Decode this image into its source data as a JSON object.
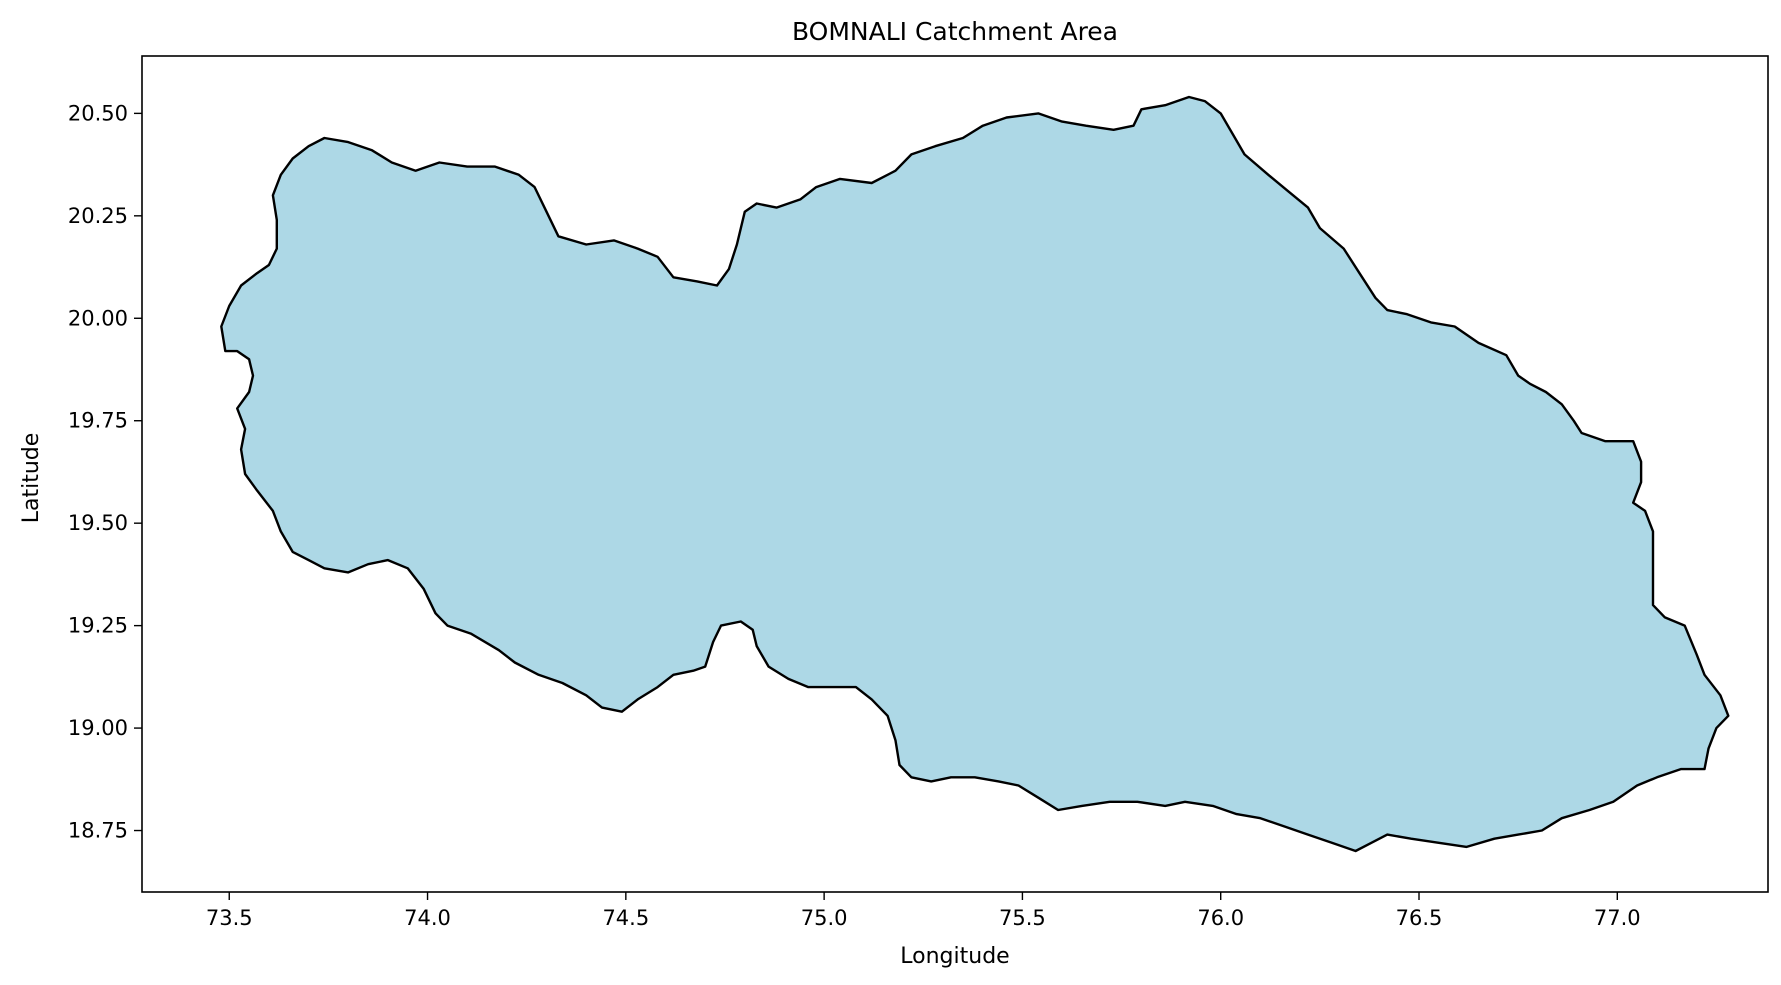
{
  "chart_data": {
    "type": "map",
    "title": "BOMNALI Catchment Area",
    "xlabel": "Longitude",
    "ylabel": "Latitude",
    "xlim": [
      73.28,
      77.38
    ],
    "ylim": [
      18.6,
      20.64
    ],
    "xticks": [
      73.5,
      74.0,
      74.5,
      75.0,
      75.5,
      76.0,
      76.5,
      77.0
    ],
    "xtick_labels": [
      "73.5",
      "74.0",
      "74.5",
      "75.0",
      "75.5",
      "76.0",
      "76.5",
      "77.0"
    ],
    "yticks": [
      18.75,
      19.0,
      19.25,
      19.5,
      19.75,
      20.0,
      20.25,
      20.5
    ],
    "ytick_labels": [
      "18.75",
      "19.00",
      "19.25",
      "19.50",
      "19.75",
      "20.00",
      "20.25",
      "20.50"
    ],
    "grid": false,
    "fill_color": "#add8e6",
    "edge_color": "#000000",
    "boundary": [
      [
        73.49,
        19.92
      ],
      [
        73.48,
        19.98
      ],
      [
        73.5,
        20.03
      ],
      [
        73.53,
        20.08
      ],
      [
        73.57,
        20.11
      ],
      [
        73.6,
        20.13
      ],
      [
        73.62,
        20.17
      ],
      [
        73.62,
        20.24
      ],
      [
        73.61,
        20.3
      ],
      [
        73.63,
        20.35
      ],
      [
        73.66,
        20.39
      ],
      [
        73.7,
        20.42
      ],
      [
        73.74,
        20.44
      ],
      [
        73.8,
        20.43
      ],
      [
        73.86,
        20.41
      ],
      [
        73.91,
        20.38
      ],
      [
        73.97,
        20.36
      ],
      [
        74.03,
        20.38
      ],
      [
        74.1,
        20.37
      ],
      [
        74.17,
        20.37
      ],
      [
        74.23,
        20.35
      ],
      [
        74.27,
        20.32
      ],
      [
        74.3,
        20.26
      ],
      [
        74.33,
        20.2
      ],
      [
        74.4,
        20.18
      ],
      [
        74.47,
        20.19
      ],
      [
        74.53,
        20.17
      ],
      [
        74.58,
        20.15
      ],
      [
        74.62,
        20.1
      ],
      [
        74.68,
        20.09
      ],
      [
        74.73,
        20.08
      ],
      [
        74.76,
        20.12
      ],
      [
        74.78,
        20.18
      ],
      [
        74.8,
        20.26
      ],
      [
        74.83,
        20.28
      ],
      [
        74.88,
        20.27
      ],
      [
        74.94,
        20.29
      ],
      [
        74.98,
        20.32
      ],
      [
        75.04,
        20.34
      ],
      [
        75.12,
        20.33
      ],
      [
        75.18,
        20.36
      ],
      [
        75.22,
        20.4
      ],
      [
        75.28,
        20.42
      ],
      [
        75.35,
        20.44
      ],
      [
        75.4,
        20.47
      ],
      [
        75.46,
        20.49
      ],
      [
        75.54,
        20.5
      ],
      [
        75.6,
        20.48
      ],
      [
        75.66,
        20.47
      ],
      [
        75.73,
        20.46
      ],
      [
        75.78,
        20.47
      ],
      [
        75.8,
        20.51
      ],
      [
        75.86,
        20.52
      ],
      [
        75.92,
        20.54
      ],
      [
        75.96,
        20.53
      ],
      [
        76.0,
        20.5
      ],
      [
        76.03,
        20.45
      ],
      [
        76.06,
        20.4
      ],
      [
        76.12,
        20.35
      ],
      [
        76.17,
        20.31
      ],
      [
        76.22,
        20.27
      ],
      [
        76.25,
        20.22
      ],
      [
        76.31,
        20.17
      ],
      [
        76.35,
        20.11
      ],
      [
        76.39,
        20.05
      ],
      [
        76.42,
        20.02
      ],
      [
        76.47,
        20.01
      ],
      [
        76.53,
        19.99
      ],
      [
        76.59,
        19.98
      ],
      [
        76.65,
        19.94
      ],
      [
        76.72,
        19.91
      ],
      [
        76.75,
        19.86
      ],
      [
        76.78,
        19.84
      ],
      [
        76.82,
        19.82
      ],
      [
        76.86,
        19.79
      ],
      [
        76.89,
        19.75
      ],
      [
        76.91,
        19.72
      ],
      [
        76.97,
        19.7
      ],
      [
        77.04,
        19.7
      ],
      [
        77.06,
        19.65
      ],
      [
        77.06,
        19.6
      ],
      [
        77.04,
        19.55
      ],
      [
        77.07,
        19.53
      ],
      [
        77.09,
        19.48
      ],
      [
        77.09,
        19.4
      ],
      [
        77.09,
        19.3
      ],
      [
        77.12,
        19.27
      ],
      [
        77.17,
        19.25
      ],
      [
        77.2,
        19.18
      ],
      [
        77.22,
        19.13
      ],
      [
        77.26,
        19.08
      ],
      [
        77.28,
        19.03
      ],
      [
        77.25,
        19.0
      ],
      [
        77.23,
        18.95
      ],
      [
        77.22,
        18.9
      ],
      [
        77.16,
        18.9
      ],
      [
        77.1,
        18.88
      ],
      [
        77.05,
        18.86
      ],
      [
        76.99,
        18.82
      ],
      [
        76.93,
        18.8
      ],
      [
        76.86,
        18.78
      ],
      [
        76.81,
        18.75
      ],
      [
        76.75,
        18.74
      ],
      [
        76.69,
        18.73
      ],
      [
        76.62,
        18.71
      ],
      [
        76.55,
        18.72
      ],
      [
        76.48,
        18.73
      ],
      [
        76.42,
        18.74
      ],
      [
        76.38,
        18.72
      ],
      [
        76.34,
        18.7
      ],
      [
        76.28,
        18.72
      ],
      [
        76.22,
        18.74
      ],
      [
        76.16,
        18.76
      ],
      [
        76.1,
        18.78
      ],
      [
        76.04,
        18.79
      ],
      [
        75.98,
        18.81
      ],
      [
        75.91,
        18.82
      ],
      [
        75.86,
        18.81
      ],
      [
        75.79,
        18.82
      ],
      [
        75.72,
        18.82
      ],
      [
        75.65,
        18.81
      ],
      [
        75.59,
        18.8
      ],
      [
        75.54,
        18.83
      ],
      [
        75.49,
        18.86
      ],
      [
        75.44,
        18.87
      ],
      [
        75.38,
        18.88
      ],
      [
        75.32,
        18.88
      ],
      [
        75.27,
        18.87
      ],
      [
        75.22,
        18.88
      ],
      [
        75.19,
        18.91
      ],
      [
        75.18,
        18.97
      ],
      [
        75.16,
        19.03
      ],
      [
        75.12,
        19.07
      ],
      [
        75.08,
        19.1
      ],
      [
        75.02,
        19.1
      ],
      [
        74.96,
        19.1
      ],
      [
        74.91,
        19.12
      ],
      [
        74.86,
        19.15
      ],
      [
        74.83,
        19.2
      ],
      [
        74.82,
        19.24
      ],
      [
        74.79,
        19.26
      ],
      [
        74.74,
        19.25
      ],
      [
        74.72,
        19.21
      ],
      [
        74.7,
        19.15
      ],
      [
        74.67,
        19.14
      ],
      [
        74.62,
        19.13
      ],
      [
        74.58,
        19.1
      ],
      [
        74.53,
        19.07
      ],
      [
        74.49,
        19.04
      ],
      [
        74.44,
        19.05
      ],
      [
        74.4,
        19.08
      ],
      [
        74.34,
        19.11
      ],
      [
        74.28,
        19.13
      ],
      [
        74.22,
        19.16
      ],
      [
        74.18,
        19.19
      ],
      [
        74.11,
        19.23
      ],
      [
        74.05,
        19.25
      ],
      [
        74.02,
        19.28
      ],
      [
        73.99,
        19.34
      ],
      [
        73.95,
        19.39
      ],
      [
        73.9,
        19.41
      ],
      [
        73.85,
        19.4
      ],
      [
        73.8,
        19.38
      ],
      [
        73.74,
        19.39
      ],
      [
        73.7,
        19.41
      ],
      [
        73.66,
        19.43
      ],
      [
        73.63,
        19.48
      ],
      [
        73.61,
        19.53
      ],
      [
        73.57,
        19.58
      ],
      [
        73.54,
        19.62
      ],
      [
        73.53,
        19.68
      ],
      [
        73.54,
        19.73
      ],
      [
        73.52,
        19.78
      ],
      [
        73.55,
        19.82
      ],
      [
        73.56,
        19.86
      ],
      [
        73.55,
        19.9
      ],
      [
        73.52,
        19.92
      ]
    ]
  }
}
